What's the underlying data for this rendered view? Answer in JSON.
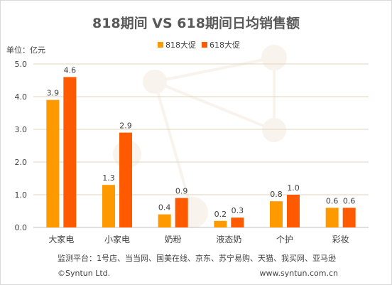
{
  "chart_data": {
    "type": "bar",
    "title": "818期间 VS 618期间日均销售额",
    "unit_label": "单位：亿元",
    "categories": [
      "大家电",
      "小家电",
      "奶粉",
      "液态奶",
      "个护",
      "彩妆"
    ],
    "series": [
      {
        "name": "818大促",
        "values": [
          3.9,
          1.3,
          0.4,
          0.2,
          0.8,
          0.6
        ],
        "value_labels": [
          "3.9",
          "1.3",
          "0.4",
          "0.2",
          "0.8",
          "0.6"
        ]
      },
      {
        "name": "618大促",
        "values": [
          4.6,
          2.9,
          0.9,
          0.3,
          1.0,
          0.6
        ],
        "value_labels": [
          "4.6",
          "2.9",
          "0.9",
          "0.3",
          "1.0",
          "0.6"
        ]
      }
    ],
    "ylim": [
      0,
      5
    ],
    "yticks": [
      0,
      1,
      2,
      3,
      4,
      5
    ],
    "ytick_labels": [
      "0.0",
      "1.0",
      "2.0",
      "3.0",
      "4.0",
      "5.0"
    ],
    "grid": true,
    "legend_position": "top-center",
    "colors": [
      "#ff9900",
      "#ff5a00"
    ]
  },
  "footer": {
    "source": "监测平台：1号店、当当网、国美在线、京东、苏宁易购、天猫、我买网、亚马逊",
    "copyright": "©Syntun Ltd.",
    "website": "www.syntun.com.cn"
  }
}
